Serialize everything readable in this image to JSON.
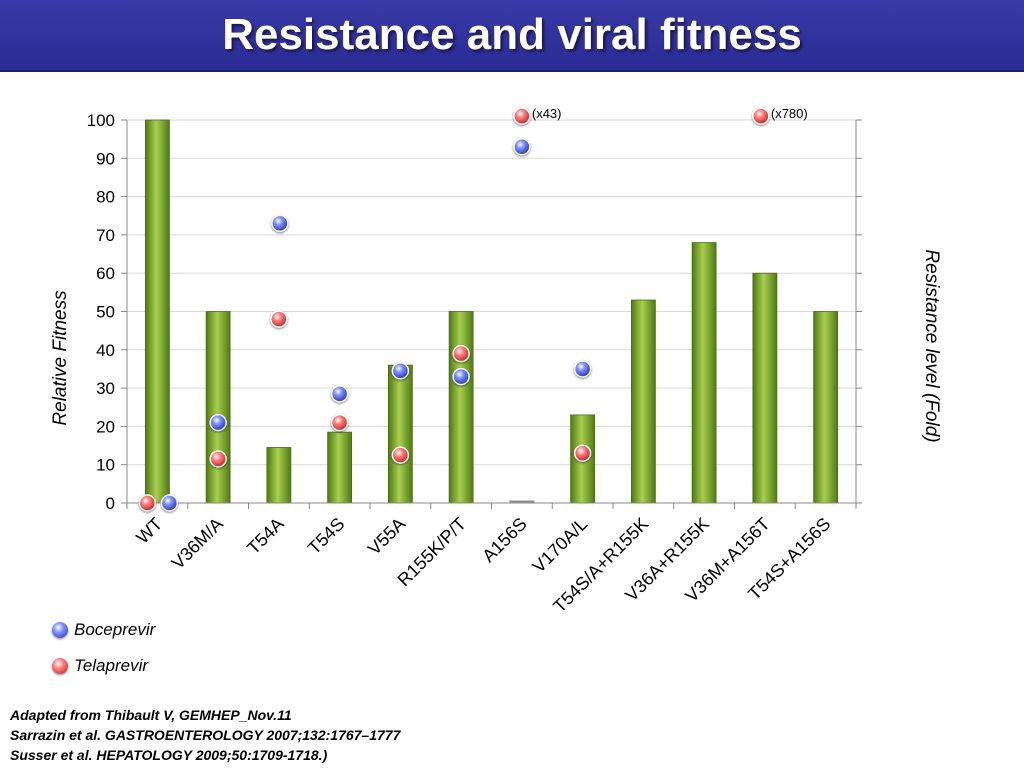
{
  "title": "Resistance and viral fitness",
  "colors": {
    "bar": "#7aa72a",
    "bar_light": "#a8cf4f",
    "bar_dark": "#4f7a12",
    "boceprevir": "#3a4fd8",
    "telaprevir": "#e03a3a",
    "title_bg": "#2e2e9c"
  },
  "chart_data": {
    "type": "bar",
    "ylabel": "Relative Fitness",
    "y2label": "Resistance level (Fold)",
    "ylim": [
      0,
      100
    ],
    "yticks": [
      0,
      10,
      20,
      30,
      40,
      50,
      60,
      70,
      80,
      90,
      100
    ],
    "categories": [
      "WT",
      "V36M/A",
      "T54A",
      "T54S",
      "V55A",
      "R155K/P/T",
      "A156S",
      "V170A/L",
      "T54S/A+R155K",
      "V36A+R155K",
      "V36M+A156T",
      "T54S+A156S"
    ],
    "values": [
      100,
      50,
      14.5,
      18.5,
      36,
      50,
      0.5,
      23,
      53,
      68,
      60,
      50
    ],
    "markers": {
      "boceprevir": [
        {
          "category": "WT",
          "value": 0
        },
        {
          "category": "V36M/A",
          "value": 21
        },
        {
          "category": "T54A",
          "value": 73
        },
        {
          "category": "T54S",
          "value": 28.5
        },
        {
          "category": "V55A",
          "value": 34.5
        },
        {
          "category": "R155K/P/T",
          "value": 33
        },
        {
          "category": "A156S",
          "value": 93
        },
        {
          "category": "V170A/L",
          "value": 35
        }
      ],
      "telaprevir": [
        {
          "category": "WT",
          "value": 0
        },
        {
          "category": "V36M/A",
          "value": 11.5
        },
        {
          "category": "T54A",
          "value": 48
        },
        {
          "category": "T54S",
          "value": 21
        },
        {
          "category": "V55A",
          "value": 12.5
        },
        {
          "category": "R155K/P/T",
          "value": 39
        },
        {
          "category": "A156S",
          "value": 101,
          "label": "(x43)"
        },
        {
          "category": "V170A/L",
          "value": 13
        },
        {
          "category": "V36M+A156T",
          "value": 101,
          "label": "(x780)"
        }
      ]
    },
    "legend": [
      {
        "name": "Boceprevir",
        "marker": "boceprevir"
      },
      {
        "name": "Telaprevir",
        "marker": "telaprevir"
      }
    ],
    "legend_position": "bottom-left",
    "grid": true
  },
  "references": [
    "Adapted from Thibault V, GEMHEP_Nov.11",
    "Sarrazin et al. GASTROENTEROLOGY 2007;132:1767–1777",
    "Susser et al. HEPATOLOGY 2009;50:1709-1718.)"
  ]
}
